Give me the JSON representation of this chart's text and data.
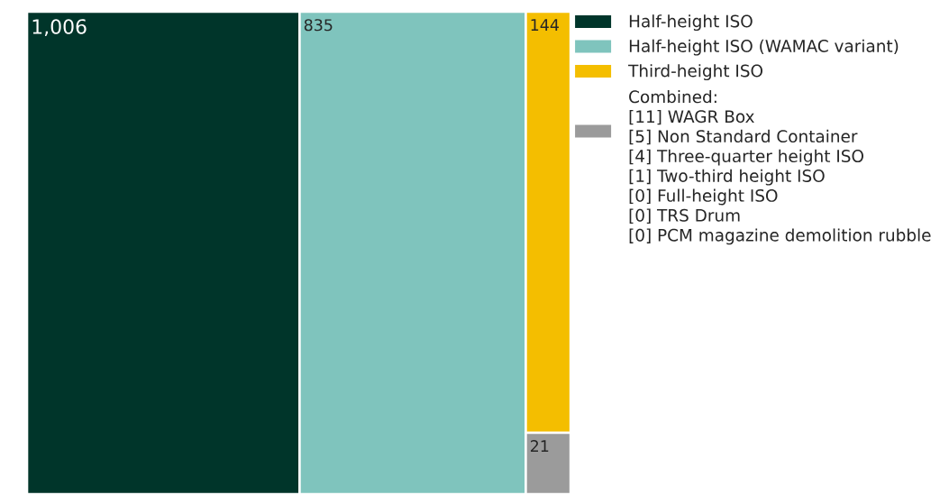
{
  "chart_data": {
    "type": "other",
    "categories": [
      "Half-height ISO",
      "Half-height ISO (WAMAC variant)",
      "Third-height ISO",
      null
    ],
    "values": [
      1006,
      835,
      144,
      21
    ],
    "value_labels": [
      "1,006",
      "835",
      "144",
      "21"
    ],
    "colors": [
      "#00352a",
      "#7fc4bd",
      "#f4be00",
      "#9b9b9b"
    ],
    "annotations": [
      "Combined:",
      "[11] WAGR Box",
      "[5] Non Standard Container",
      "[4] Three-quarter height ISO",
      "[1] Two-third height ISO",
      "[0] Full-height ISO",
      "[0] TRS Drum",
      "[0] PCM magazine demolition rubble"
    ]
  }
}
